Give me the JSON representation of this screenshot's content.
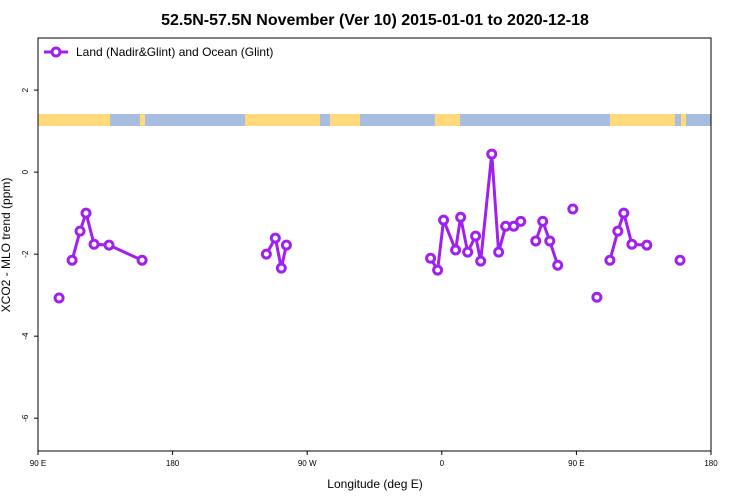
{
  "chart_data": {
    "type": "line",
    "title": "52.5N-57.5N November (Ver 10)   2015-01-01 to 2020-12-18",
    "x_label": "Longitude (deg E)",
    "y_label": "XCO2 - MLO trend (ppm)",
    "legend_position": "top-left",
    "xlim": [
      90,
      540
    ],
    "xticks": [
      {
        "value": 90,
        "label": "90 E"
      },
      180,
      {
        "value": 270,
        "label": "90 W"
      },
      {
        "value": 360,
        "label": "0"
      },
      {
        "value": 450,
        "label": "90 E"
      },
      {
        "value": 540,
        "label": "180"
      }
    ],
    "ylim": [
      -6.8,
      3.27
    ],
    "yticks": [
      2,
      0,
      -2,
      -4,
      -6
    ],
    "series": [
      {
        "name": "Land (Nadir&Glint) and Ocean (Glint)",
        "color": "#a020f0",
        "x": [
          104.1,
          null,
          112.8,
          118.1,
          122.1,
          127.5,
          137.5,
          159.6,
          null,
          242.7,
          248.7,
          252.7,
          256.1,
          null,
          352.5,
          357.2,
          361.2,
          369.2,
          372.6,
          377.3,
          382.6,
          386.0,
          393.4,
          398.0,
          402.7,
          408.1,
          412.8,
          null,
          422.8,
          427.5,
          432.2,
          437.5,
          null,
          447.6,
          null,
          463.7,
          null,
          472.4,
          477.7,
          481.7,
          487.1,
          497.1,
          null,
          519.3
        ],
        "values": [
          -3.07,
          null,
          -2.15,
          -1.44,
          -1.0,
          -1.76,
          -1.78,
          -2.15,
          null,
          -2.0,
          -1.61,
          -2.34,
          -1.78,
          null,
          -2.1,
          -2.39,
          -1.17,
          -1.9,
          -1.1,
          -1.95,
          -1.56,
          -2.17,
          0.44,
          -1.95,
          -1.32,
          -1.32,
          -1.2,
          null,
          -1.68,
          -1.2,
          -1.68,
          -2.27,
          null,
          -0.9,
          null,
          -3.05,
          null,
          -2.15,
          -1.44,
          -1.0,
          -1.76,
          -1.78,
          null,
          -2.15
        ]
      }
    ]
  }
}
